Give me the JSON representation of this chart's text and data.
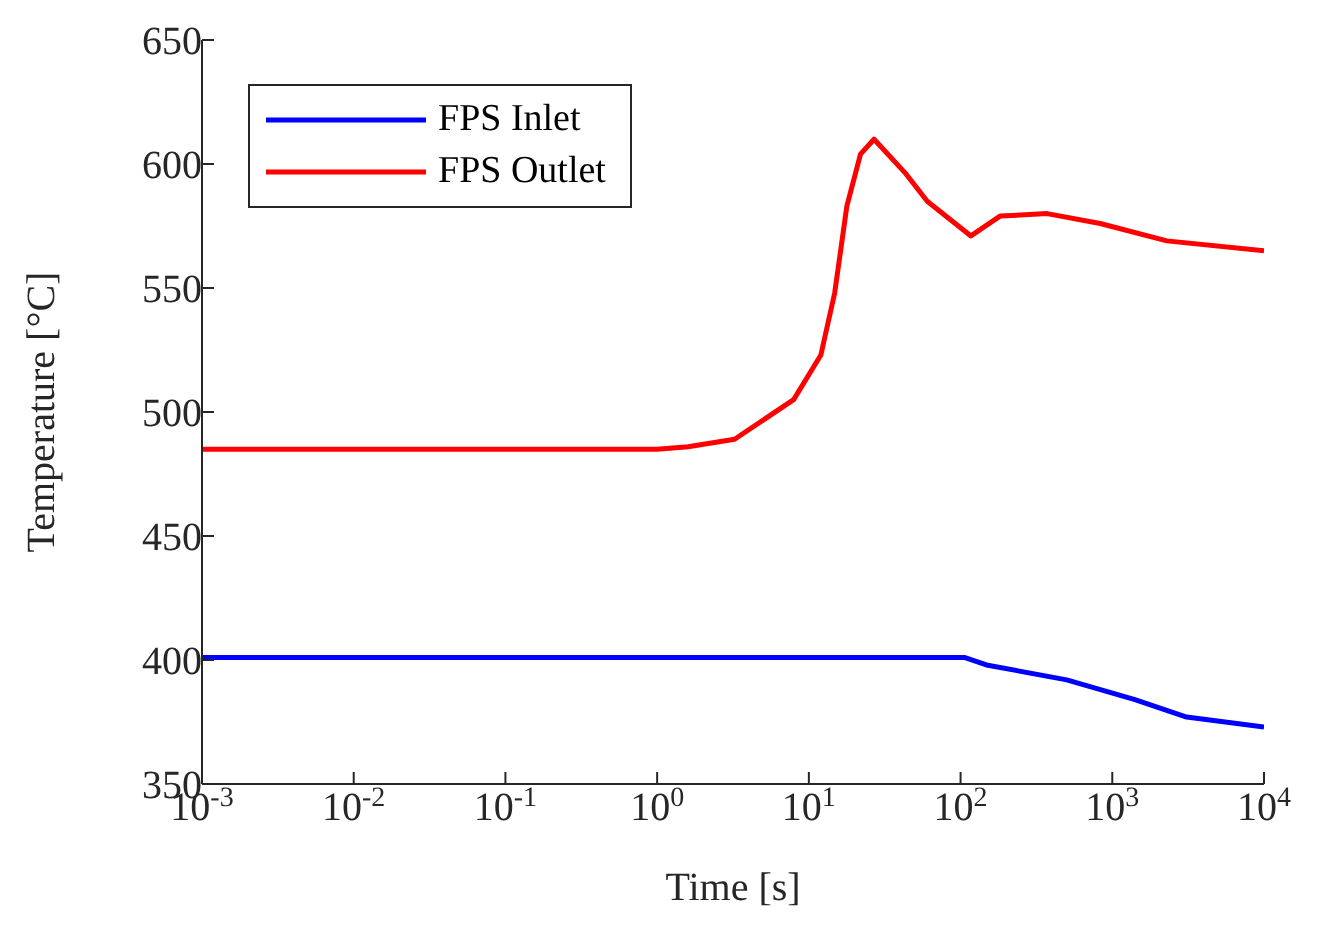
{
  "chart_data": {
    "type": "line",
    "xlabel": "Time [s]",
    "ylabel": "Temperature [°C]",
    "log": "x",
    "xlim": [
      0.001,
      10000
    ],
    "ylim": [
      350,
      650
    ],
    "xticks": [
      {
        "value": 0.001,
        "label": "10$^{-3}$"
      },
      {
        "value": 0.01,
        "label": "10$^{-2}$"
      },
      {
        "value": 0.1,
        "label": "10$^{-1}$"
      },
      {
        "value": 1,
        "label": "10$^{0}$"
      },
      {
        "value": 10,
        "label": "10$^{1}$"
      },
      {
        "value": 100,
        "label": "10$^{2}$"
      },
      {
        "value": 1000,
        "label": "10$^{3}$"
      },
      {
        "value": 10000,
        "label": "10$^{4}$"
      }
    ],
    "yticks": [
      350,
      400,
      450,
      500,
      550,
      600,
      650
    ],
    "grid": false,
    "legend": "top left",
    "marker": "none",
    "line_style": "solid",
    "series": [
      {
        "name": "FPS Inlet",
        "color": "#0000ff",
        "x": [
          0.001,
          107,
          148,
          501,
          1410,
          3090,
          10000
        ],
        "values": [
          401,
          401,
          398,
          392,
          384,
          377,
          373
        ]
      },
      {
        "name": "FPS Outlet",
        "color": "#ff0000",
        "x": [
          0.001,
          1,
          1.6,
          3.24,
          7.94,
          12,
          14.8,
          17.8,
          21.9,
          26.9,
          43.7,
          60.3,
          117,
          182,
          372,
          832,
          2290,
          10000
        ],
        "values": [
          485,
          485,
          486,
          489,
          505,
          523,
          548,
          583,
          604,
          610,
          596,
          585,
          571,
          579,
          580,
          576,
          569,
          565
        ]
      }
    ]
  }
}
